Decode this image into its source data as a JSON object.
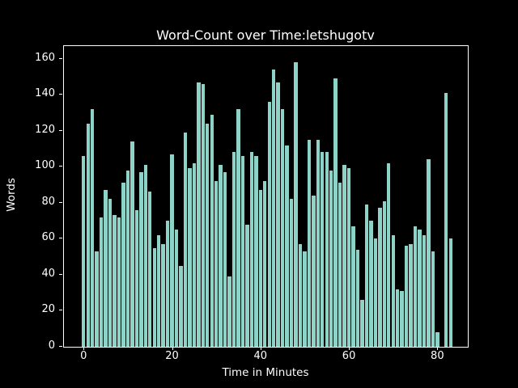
{
  "chart_data": {
    "type": "bar",
    "title": "Word-Count over Time:letshugotv",
    "xlabel": "Time in Minutes",
    "ylabel": "Words",
    "x": [
      0,
      1,
      2,
      3,
      4,
      5,
      6,
      7,
      8,
      9,
      10,
      11,
      12,
      13,
      14,
      15,
      16,
      17,
      18,
      19,
      20,
      21,
      22,
      23,
      24,
      25,
      26,
      27,
      28,
      29,
      30,
      31,
      32,
      33,
      34,
      35,
      36,
      37,
      38,
      39,
      40,
      41,
      42,
      43,
      44,
      45,
      46,
      47,
      48,
      49,
      50,
      51,
      52,
      53,
      54,
      55,
      56,
      57,
      58,
      59,
      60,
      61,
      62,
      63,
      64,
      65,
      66,
      67,
      68,
      69,
      70,
      71,
      72,
      73,
      74,
      75,
      76,
      77,
      78,
      79,
      80,
      81,
      82,
      83
    ],
    "values": [
      106,
      124,
      132,
      53,
      72,
      87,
      82,
      73,
      72,
      91,
      98,
      114,
      76,
      97,
      101,
      86,
      55,
      62,
      57,
      70,
      107,
      65,
      45,
      119,
      99,
      102,
      147,
      146,
      124,
      129,
      92,
      101,
      97,
      39,
      108,
      132,
      106,
      68,
      108,
      106,
      87,
      92,
      136,
      154,
      147,
      132,
      112,
      82,
      158,
      57,
      53,
      115,
      84,
      115,
      108,
      108,
      98,
      149,
      91,
      101,
      99,
      67,
      54,
      26,
      79,
      70,
      60,
      77,
      81,
      102,
      62,
      32,
      31,
      56,
      57,
      67,
      65,
      62,
      104,
      53,
      8,
      0,
      141,
      60
    ],
    "xticks": [
      0,
      20,
      40,
      60,
      80
    ],
    "yticks": [
      0,
      20,
      40,
      60,
      80,
      100,
      120,
      140,
      160
    ],
    "xlim": [
      -4.6,
      86.8
    ],
    "ylim": [
      0,
      167
    ],
    "bar_color": "#8dd3c7",
    "background_color": "#000000",
    "axes_color": "#ffffff",
    "legend": "none",
    "grid": "off"
  }
}
